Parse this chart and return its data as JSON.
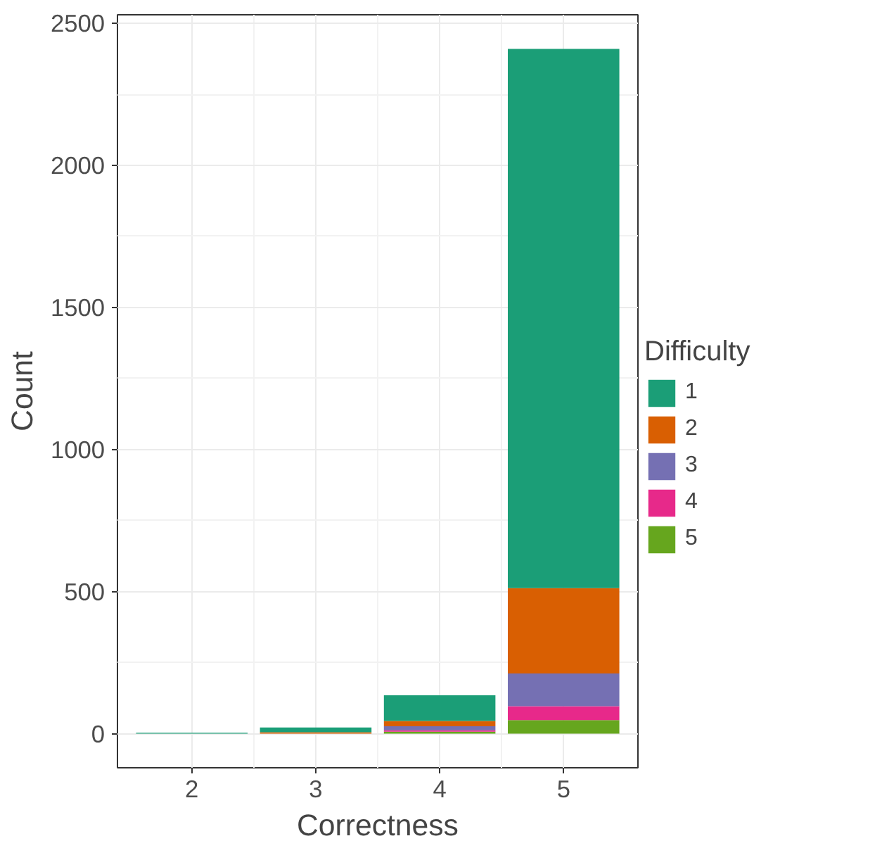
{
  "chart_data": {
    "type": "bar",
    "stacked": true,
    "xlabel": "Correctness",
    "ylabel": "Count",
    "legend_title": "Difficulty",
    "x": [
      2,
      3,
      4,
      5
    ],
    "xlim": [
      1.4,
      5.6
    ],
    "xticks": [
      2,
      3,
      4,
      5
    ],
    "ylim": [
      -120,
      2530
    ],
    "yticks": [
      0,
      500,
      1000,
      1500,
      2000,
      2500
    ],
    "grid": true,
    "legend": "right",
    "series": [
      {
        "name": "5",
        "color": "#66a61e",
        "values": [
          0,
          0,
          7,
          48
        ]
      },
      {
        "name": "4",
        "color": "#e7298a",
        "values": [
          0,
          0,
          5,
          49
        ]
      },
      {
        "name": "3",
        "color": "#7570b3",
        "values": [
          0,
          null,
          14,
          115
        ]
      },
      {
        "name": "2",
        "color": "#d95f02",
        "values": [
          0,
          5,
          19,
          300
        ]
      },
      {
        "name": "1",
        "color": "#1b9e77",
        "values": [
          3,
          17,
          90,
          1898
        ]
      }
    ]
  }
}
